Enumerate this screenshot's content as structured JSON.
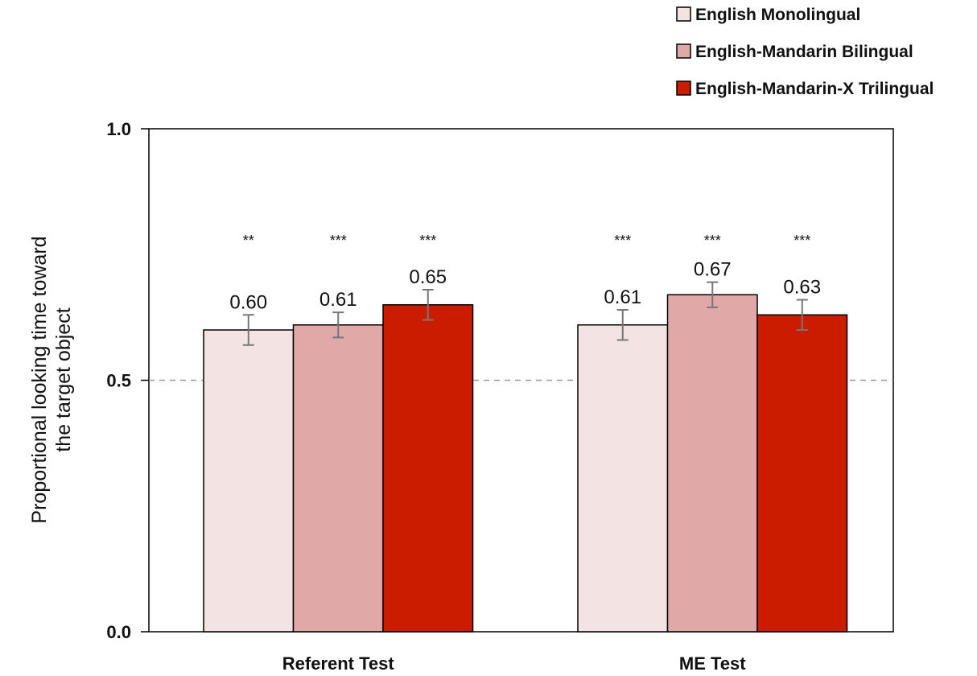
{
  "chart_data": {
    "type": "bar",
    "title": "",
    "xlabel": "",
    "ylabel_lines": [
      "Proportional looking time toward",
      "the target object"
    ],
    "ylim": [
      0,
      1.0
    ],
    "yticks": [
      "0.0",
      "0.5",
      "1.0"
    ],
    "ytick_values": [
      0.0,
      0.5,
      1.0
    ],
    "reference_line": 0.5,
    "categories": [
      "Referent Test",
      "ME Test"
    ],
    "legend_position": "top-right",
    "series": [
      {
        "name": "English Monolingual",
        "color": "#f4e3e3",
        "values": [
          0.6,
          0.61
        ],
        "value_labels": [
          "0.60",
          "0.61"
        ],
        "errors": [
          0.03,
          0.03
        ],
        "significance": [
          "**",
          "***"
        ]
      },
      {
        "name": "English-Mandarin Bilingual",
        "color": "#e1a8a8",
        "values": [
          0.61,
          0.67
        ],
        "value_labels": [
          "0.61",
          "0.67"
        ],
        "errors": [
          0.025,
          0.025
        ],
        "significance": [
          "***",
          "***"
        ]
      },
      {
        "name": "English-Mandarin-X Trilingual",
        "color": "#cc1c00",
        "values": [
          0.65,
          0.63
        ],
        "value_labels": [
          "0.65",
          "0.63"
        ],
        "errors": [
          0.03,
          0.03
        ],
        "significance": [
          "***",
          "***"
        ]
      }
    ]
  }
}
